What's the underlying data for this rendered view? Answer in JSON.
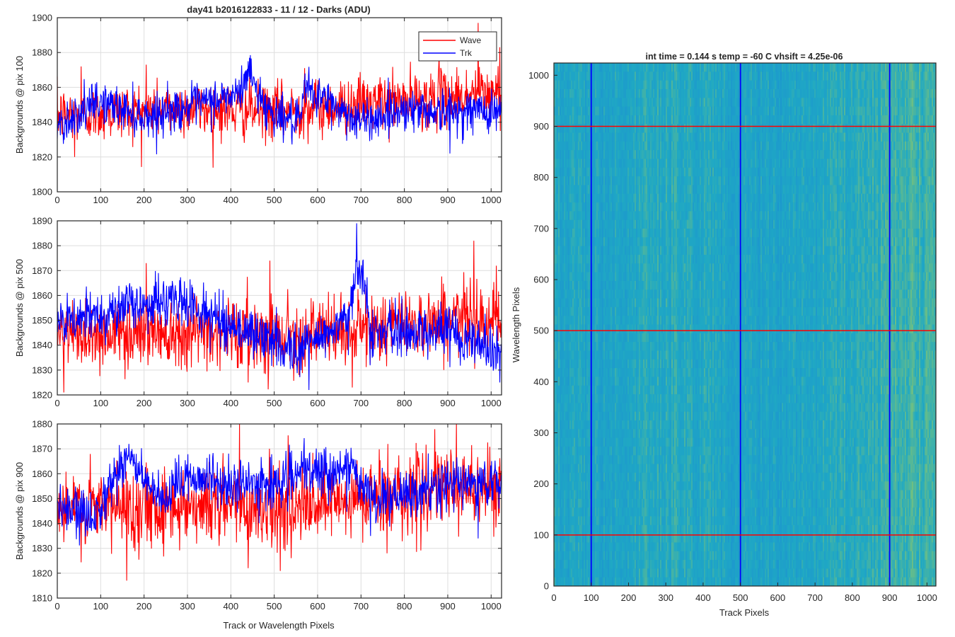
{
  "figure": {
    "title": "day41 b2016122833 - 11 / 12 - Darks (ADU)",
    "shared_xlabel": "Track or Wavelength Pixels",
    "colors": {
      "wave": "#ff0000",
      "trk": "#0000ff",
      "axis": "#262626",
      "grid": "#dedede"
    }
  },
  "chart_data": [
    {
      "type": "line",
      "title": "day41 b2016122833 - 11 / 12 - Darks (ADU)",
      "xlabel": "",
      "ylabel": "Backgrounds @ pix 100",
      "xlim": [
        0,
        1024
      ],
      "ylim": [
        1800,
        1900
      ],
      "xticks": [
        0,
        100,
        200,
        300,
        400,
        500,
        600,
        700,
        800,
        900,
        1000
      ],
      "yticks": [
        1800,
        1820,
        1840,
        1860,
        1880,
        1900
      ],
      "grid": true,
      "legend": {
        "position": "top-right",
        "entries": [
          "Wave",
          "Trk"
        ]
      },
      "series": [
        {
          "name": "Wave",
          "color": "#ff0000",
          "n_points": 1024,
          "mean": 1848,
          "noise_std": 8,
          "drift": [
            [
              0,
              1844
            ],
            [
              300,
              1848
            ],
            [
              500,
              1846
            ],
            [
              800,
              1852
            ],
            [
              1024,
              1857
            ]
          ],
          "spikes": [
            [
              55,
              1872
            ],
            [
              205,
              1873
            ],
            [
              570,
              1871
            ],
            [
              880,
              1878
            ],
            [
              970,
              1897
            ],
            [
              1020,
              1883
            ],
            [
              40,
              1820
            ]
          ]
        },
        {
          "name": "Trk",
          "color": "#0000ff",
          "n_points": 1024,
          "mean": 1843,
          "noise_std": 6,
          "drift": [
            [
              0,
              1838
            ],
            [
              100,
              1852
            ],
            [
              200,
              1843
            ],
            [
              420,
              1856
            ],
            [
              440,
              1870
            ],
            [
              480,
              1848
            ],
            [
              560,
              1838
            ],
            [
              570,
              1860
            ],
            [
              700,
              1840
            ],
            [
              800,
              1848
            ],
            [
              900,
              1846
            ],
            [
              1024,
              1847
            ]
          ],
          "spikes": [
            [
              440,
              1875
            ],
            [
              570,
              1864
            ],
            [
              905,
              1822
            ]
          ]
        }
      ]
    },
    {
      "type": "line",
      "title": "",
      "xlabel": "",
      "ylabel": "Backgrounds @ pix 500",
      "xlim": [
        0,
        1024
      ],
      "ylim": [
        1820,
        1890
      ],
      "xticks": [
        0,
        100,
        200,
        300,
        400,
        500,
        600,
        700,
        800,
        900,
        1000
      ],
      "yticks": [
        1820,
        1830,
        1840,
        1850,
        1860,
        1870,
        1880,
        1890
      ],
      "grid": true,
      "series": [
        {
          "name": "Wave",
          "color": "#ff0000",
          "n_points": 1024,
          "mean": 1846,
          "noise_std": 7,
          "drift": [
            [
              0,
              1844
            ],
            [
              300,
              1846
            ],
            [
              600,
              1844
            ],
            [
              800,
              1849
            ],
            [
              1024,
              1852
            ]
          ],
          "spikes": [
            [
              205,
              1873
            ],
            [
              490,
              1874
            ],
            [
              960,
              1882
            ],
            [
              15,
              1821
            ],
            [
              440,
              1825
            ],
            [
              680,
              1823
            ]
          ]
        },
        {
          "name": "Trk",
          "color": "#0000ff",
          "n_points": 1024,
          "mean": 1848,
          "noise_std": 5,
          "drift": [
            [
              0,
              1848
            ],
            [
              170,
              1856
            ],
            [
              280,
              1858
            ],
            [
              400,
              1848
            ],
            [
              550,
              1838
            ],
            [
              650,
              1848
            ],
            [
              670,
              1848
            ],
            [
              690,
              1873
            ],
            [
              705,
              1870
            ],
            [
              720,
              1845
            ],
            [
              900,
              1846
            ],
            [
              1024,
              1838
            ]
          ],
          "spikes": [
            [
              690,
              1889
            ],
            [
              580,
              1822
            ],
            [
              1020,
              1825
            ]
          ]
        }
      ]
    },
    {
      "type": "line",
      "title": "",
      "xlabel": "Track or Wavelength Pixels",
      "ylabel": "Backgrounds @ pix 900",
      "xlim": [
        0,
        1024
      ],
      "ylim": [
        1810,
        1880
      ],
      "xticks": [
        0,
        100,
        200,
        300,
        400,
        500,
        600,
        700,
        800,
        900,
        1000
      ],
      "yticks": [
        1810,
        1820,
        1830,
        1840,
        1850,
        1860,
        1870,
        1880
      ],
      "grid": true,
      "series": [
        {
          "name": "Wave",
          "color": "#ff0000",
          "n_points": 1024,
          "mean": 1846,
          "noise_std": 8,
          "drift": [
            [
              0,
              1845
            ],
            [
              300,
              1848
            ],
            [
              600,
              1846
            ],
            [
              800,
              1853
            ],
            [
              1024,
              1855
            ]
          ],
          "spikes": [
            [
              420,
              1880
            ],
            [
              920,
              1880
            ],
            [
              160,
              1817
            ],
            [
              440,
              1822
            ],
            [
              760,
              1828
            ]
          ]
        },
        {
          "name": "Trk",
          "color": "#0000ff",
          "n_points": 1024,
          "mean": 1850,
          "noise_std": 5,
          "drift": [
            [
              0,
              1846
            ],
            [
              80,
              1842
            ],
            [
              160,
              1868
            ],
            [
              240,
              1847
            ],
            [
              300,
              1860
            ],
            [
              400,
              1855
            ],
            [
              500,
              1856
            ],
            [
              560,
              1860
            ],
            [
              680,
              1862
            ],
            [
              720,
              1850
            ],
            [
              800,
              1850
            ],
            [
              900,
              1856
            ],
            [
              1024,
              1856
            ]
          ],
          "spikes": [
            [
              165,
              1872
            ],
            [
              680,
              1866
            ],
            [
              970,
              1834
            ]
          ]
        }
      ]
    },
    {
      "type": "heatmap",
      "title": "int time = 0.144 s   temp = -60 C   vhsift = 4.25e-06",
      "xlabel": "Track Pixels",
      "ylabel": "Wavelength Pixels",
      "xlim": [
        0,
        1024
      ],
      "ylim": [
        0,
        1024
      ],
      "xticks": [
        0,
        100,
        200,
        300,
        400,
        500,
        600,
        700,
        800,
        900,
        1000
      ],
      "yticks": [
        0,
        100,
        200,
        300,
        400,
        500,
        600,
        700,
        800,
        900,
        1000
      ],
      "colormap": "parula",
      "colors": {
        "low": "#1b8fd3",
        "mid": "#1fa8c4",
        "high": "#8cc86a"
      },
      "column_profile": [
        [
          0,
          0.5
        ],
        [
          50,
          0.42
        ],
        [
          100,
          0.38
        ],
        [
          200,
          0.45
        ],
        [
          300,
          0.52
        ],
        [
          400,
          0.48
        ],
        [
          500,
          0.4
        ],
        [
          600,
          0.38
        ],
        [
          700,
          0.45
        ],
        [
          800,
          0.55
        ],
        [
          900,
          0.62
        ],
        [
          1000,
          0.65
        ],
        [
          1024,
          0.6
        ]
      ],
      "vertical_markers": {
        "color": "#0000ff",
        "values": [
          100,
          500,
          900
        ]
      },
      "horizontal_markers": {
        "color": "#ff0000",
        "values": [
          100,
          500,
          900
        ]
      }
    }
  ]
}
